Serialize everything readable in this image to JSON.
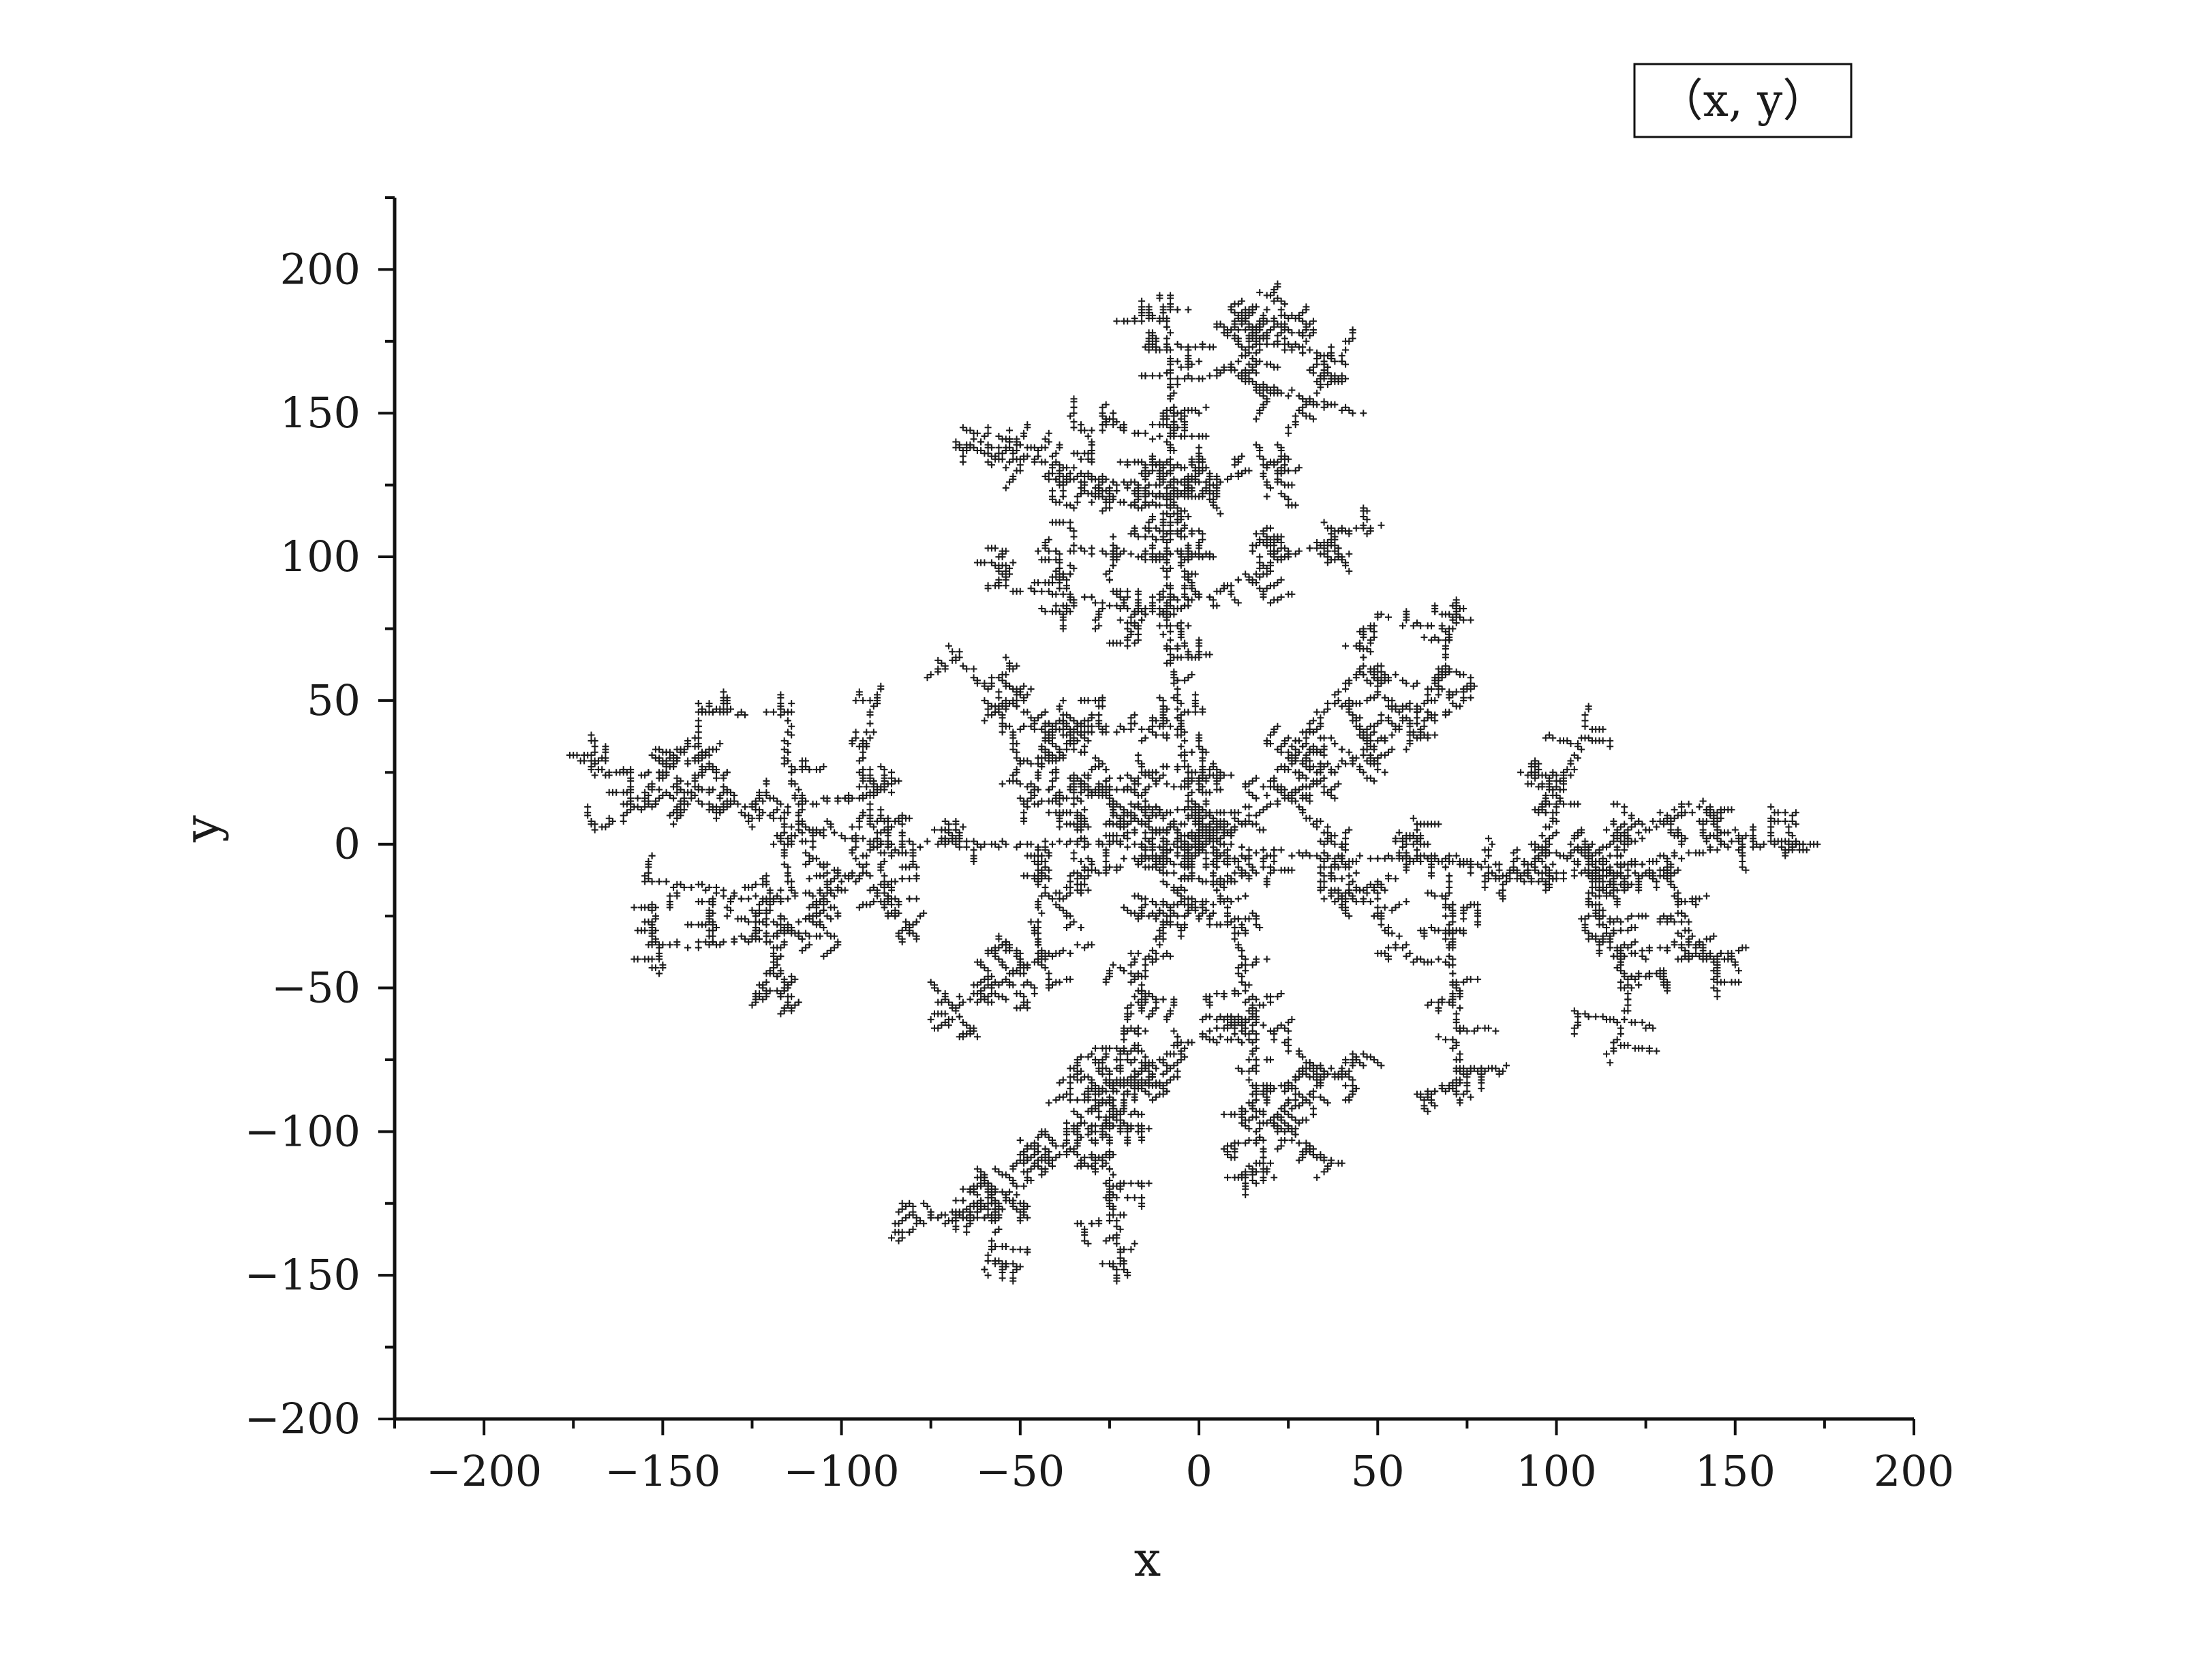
{
  "chart_data": {
    "type": "scatter",
    "title": "",
    "xlabel": "x",
    "ylabel": "y",
    "xlim": [
      -225,
      200
    ],
    "ylim": [
      -200,
      225
    ],
    "x_ticks": [
      -200,
      -150,
      -100,
      -50,
      0,
      50,
      100,
      150,
      200
    ],
    "y_ticks": [
      -200,
      -150,
      -100,
      -50,
      0,
      50,
      100,
      150,
      200
    ],
    "x_tick_labels": [
      "−200",
      "−150",
      "−100",
      "−50",
      "0",
      "50",
      "100",
      "150",
      "200"
    ],
    "y_tick_labels": [
      "−200",
      "−150",
      "−100",
      "−50",
      "0",
      "50",
      "100",
      "150",
      "200"
    ],
    "legend": {
      "position": "top-right",
      "entries": [
        "（x, y）"
      ]
    },
    "grid": false,
    "marker": "+",
    "color": "#1a1a1a",
    "series": [
      {
        "description_free": true,
        "branches": [
          [
            [
              0,
              0
            ],
            [
              -20,
              20
            ],
            [
              -40,
              40
            ],
            [
              -60,
              55
            ],
            [
              -70,
              68
            ]
          ],
          [
            [
              -20,
              20
            ],
            [
              -40,
              18
            ],
            [
              -55,
              22
            ]
          ],
          [
            [
              0,
              0
            ],
            [
              -5,
              40
            ],
            [
              -10,
              80
            ],
            [
              -8,
              120
            ],
            [
              -8,
              160
            ],
            [
              -10,
              190
            ]
          ],
          [
            [
              -8,
              160
            ],
            [
              8,
              165
            ],
            [
              18,
              175
            ],
            [
              25,
              188
            ]
          ],
          [
            [
              18,
              175
            ],
            [
              35,
              170
            ],
            [
              42,
              168
            ]
          ],
          [
            [
              8,
              165
            ],
            [
              30,
              155
            ],
            [
              45,
              150
            ]
          ],
          [
            [
              -8,
              120
            ],
            [
              -30,
              128
            ],
            [
              -50,
              135
            ],
            [
              -62,
              140
            ]
          ],
          [
            [
              -8,
              120
            ],
            [
              10,
              128
            ],
            [
              25,
              132
            ]
          ],
          [
            [
              -8,
              140
            ],
            [
              -20,
              145
            ],
            [
              -35,
              145
            ]
          ],
          [
            [
              -10,
              80
            ],
            [
              -30,
              85
            ],
            [
              -45,
              88
            ],
            [
              -60,
              90
            ]
          ],
          [
            [
              -10,
              80
            ],
            [
              8,
              90
            ],
            [
              25,
              100
            ],
            [
              40,
              108
            ],
            [
              50,
              110
            ]
          ],
          [
            [
              -10,
              100
            ],
            [
              -25,
              102
            ],
            [
              -45,
              102
            ]
          ],
          [
            [
              -5,
              40
            ],
            [
              -25,
              40
            ],
            [
              -40,
              42
            ],
            [
              -55,
              40
            ]
          ],
          [
            [
              0,
              0
            ],
            [
              20,
              20
            ],
            [
              30,
              40
            ],
            [
              45,
              60
            ],
            [
              50,
              80
            ]
          ],
          [
            [
              45,
              60
            ],
            [
              55,
              48
            ],
            [
              68,
              45
            ],
            [
              75,
              50
            ]
          ],
          [
            [
              0,
              0
            ],
            [
              30,
              20
            ],
            [
              50,
              35
            ],
            [
              65,
              50
            ],
            [
              70,
              70
            ],
            [
              72,
              85
            ]
          ],
          [
            [
              0,
              0
            ],
            [
              40,
              -5
            ],
            [
              70,
              -5
            ],
            [
              90,
              -10
            ],
            [
              110,
              -10
            ],
            [
              130,
              -5
            ],
            [
              150,
              0
            ],
            [
              165,
              0
            ]
          ],
          [
            [
              90,
              -10
            ],
            [
              100,
              10
            ],
            [
              105,
              30
            ],
            [
              110,
              48
            ]
          ],
          [
            [
              110,
              -10
            ],
            [
              130,
              10
            ],
            [
              140,
              15
            ]
          ],
          [
            [
              130,
              -5
            ],
            [
              135,
              -25
            ],
            [
              140,
              -40
            ],
            [
              150,
              -40
            ]
          ],
          [
            [
              110,
              -10
            ],
            [
              115,
              -30
            ],
            [
              120,
              -55
            ],
            [
              115,
              -75
            ]
          ],
          [
            [
              70,
              -5
            ],
            [
              70,
              -30
            ],
            [
              72,
              -55
            ],
            [
              72,
              -80
            ],
            [
              75,
              -88
            ]
          ],
          [
            [
              0,
              0
            ],
            [
              10,
              -30
            ],
            [
              15,
              -60
            ],
            [
              15,
              -90
            ],
            [
              20,
              -115
            ]
          ],
          [
            [
              15,
              -60
            ],
            [
              30,
              -75
            ],
            [
              45,
              -85
            ]
          ],
          [
            [
              15,
              -90
            ],
            [
              30,
              -105
            ],
            [
              40,
              -112
            ]
          ],
          [
            [
              15,
              -60
            ],
            [
              -5,
              -70
            ],
            [
              -20,
              -82
            ],
            [
              -35,
              -90
            ]
          ],
          [
            [
              0,
              0
            ],
            [
              -10,
              -30
            ],
            [
              -20,
              -60
            ],
            [
              -25,
              -95
            ],
            [
              -25,
              -125
            ],
            [
              -20,
              -150
            ]
          ],
          [
            [
              -25,
              -95
            ],
            [
              -40,
              -110
            ],
            [
              -55,
              -125
            ],
            [
              -75,
              -130
            ],
            [
              -85,
              -138
            ]
          ],
          [
            [
              -55,
              -125
            ],
            [
              -60,
              -150
            ]
          ],
          [
            [
              0,
              0
            ],
            [
              -30,
              -10
            ],
            [
              -45,
              -20
            ],
            [
              -45,
              -40
            ],
            [
              -60,
              -50
            ],
            [
              -75,
              -60
            ]
          ],
          [
            [
              -45,
              -40
            ],
            [
              -30,
              -35
            ]
          ],
          [
            [
              0,
              0
            ],
            [
              -60,
              0
            ],
            [
              -90,
              0
            ],
            [
              -110,
              5
            ],
            [
              -130,
              15
            ],
            [
              -150,
              25
            ],
            [
              -170,
              25
            ]
          ],
          [
            [
              -90,
              0
            ],
            [
              -95,
              25
            ],
            [
              -90,
              50
            ]
          ],
          [
            [
              -110,
              5
            ],
            [
              -115,
              30
            ],
            [
              -115,
              48
            ]
          ],
          [
            [
              -130,
              15
            ],
            [
              -140,
              35
            ],
            [
              -140,
              50
            ]
          ],
          [
            [
              -150,
              25
            ],
            [
              -160,
              10
            ],
            [
              -170,
              5
            ]
          ],
          [
            [
              -90,
              0
            ],
            [
              -100,
              -15
            ],
            [
              -120,
              -20
            ],
            [
              -140,
              -15
            ],
            [
              -155,
              -12
            ]
          ],
          [
            [
              -100,
              -15
            ],
            [
              -115,
              -30
            ],
            [
              -135,
              -35
            ],
            [
              -155,
              -35
            ]
          ],
          [
            [
              -115,
              -30
            ],
            [
              -120,
              -45
            ],
            [
              -125,
              -55
            ]
          ],
          [
            [
              -90,
              0
            ],
            [
              -85,
              -25
            ],
            [
              -80,
              -30
            ]
          ],
          [
            [
              40,
              -5
            ],
            [
              50,
              -25
            ],
            [
              60,
              -40
            ]
          ]
        ]
      }
    ]
  }
}
